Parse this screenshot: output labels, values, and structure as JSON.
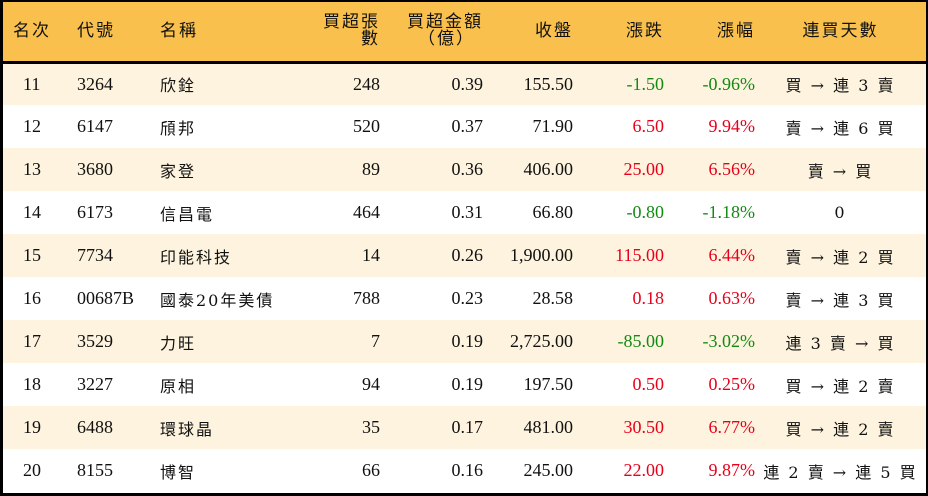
{
  "table": {
    "headers": {
      "rank": "名次",
      "code": "代號",
      "name": "名稱",
      "buy_volume": "買超張數",
      "buy_amount_line1": "買超金額",
      "buy_amount_line2": "（億）",
      "close": "收盤",
      "change": "漲跌",
      "change_pct": "漲幅",
      "streak": "連買天數"
    },
    "colors": {
      "header_bg": "#F9C04D",
      "row_alt_bg": "#FDF3DE",
      "row_bg": "#FFFFFF",
      "up": "#E8001B",
      "down": "#138A12",
      "border": "#000000"
    },
    "rows": [
      {
        "rank": "11",
        "code": "3264",
        "name": "欣銓",
        "buy_volume": "248",
        "buy_amount": "0.39",
        "close": "155.50",
        "change": "-1.50",
        "change_pct": "-0.96%",
        "direction": "down",
        "streak": "買 → 連 3 賣"
      },
      {
        "rank": "12",
        "code": "6147",
        "name": "頎邦",
        "buy_volume": "520",
        "buy_amount": "0.37",
        "close": "71.90",
        "change": "6.50",
        "change_pct": "9.94%",
        "direction": "up",
        "streak": "賣 → 連 6 買"
      },
      {
        "rank": "13",
        "code": "3680",
        "name": "家登",
        "buy_volume": "89",
        "buy_amount": "0.36",
        "close": "406.00",
        "change": "25.00",
        "change_pct": "6.56%",
        "direction": "up",
        "streak": "賣 → 買"
      },
      {
        "rank": "14",
        "code": "6173",
        "name": "信昌電",
        "buy_volume": "464",
        "buy_amount": "0.31",
        "close": "66.80",
        "change": "-0.80",
        "change_pct": "-1.18%",
        "direction": "down",
        "streak": "0"
      },
      {
        "rank": "15",
        "code": "7734",
        "name": "印能科技",
        "buy_volume": "14",
        "buy_amount": "0.26",
        "close": "1,900.00",
        "change": "115.00",
        "change_pct": "6.44%",
        "direction": "up",
        "streak": "賣 → 連 2 買"
      },
      {
        "rank": "16",
        "code": "00687B",
        "name": "國泰20年美債",
        "buy_volume": "788",
        "buy_amount": "0.23",
        "close": "28.58",
        "change": "0.18",
        "change_pct": "0.63%",
        "direction": "up",
        "streak": "賣 → 連 3 買"
      },
      {
        "rank": "17",
        "code": "3529",
        "name": "力旺",
        "buy_volume": "7",
        "buy_amount": "0.19",
        "close": "2,725.00",
        "change": "-85.00",
        "change_pct": "-3.02%",
        "direction": "down",
        "streak": "連 3 賣 → 買"
      },
      {
        "rank": "18",
        "code": "3227",
        "name": "原相",
        "buy_volume": "94",
        "buy_amount": "0.19",
        "close": "197.50",
        "change": "0.50",
        "change_pct": "0.25%",
        "direction": "up",
        "streak": "買 → 連 2 賣"
      },
      {
        "rank": "19",
        "code": "6488",
        "name": "環球晶",
        "buy_volume": "35",
        "buy_amount": "0.17",
        "close": "481.00",
        "change": "30.50",
        "change_pct": "6.77%",
        "direction": "up",
        "streak": "買 → 連 2 賣"
      },
      {
        "rank": "20",
        "code": "8155",
        "name": "博智",
        "buy_volume": "66",
        "buy_amount": "0.16",
        "close": "245.00",
        "change": "22.00",
        "change_pct": "9.87%",
        "direction": "up",
        "streak": "連 2 賣 → 連 5 買"
      }
    ]
  }
}
